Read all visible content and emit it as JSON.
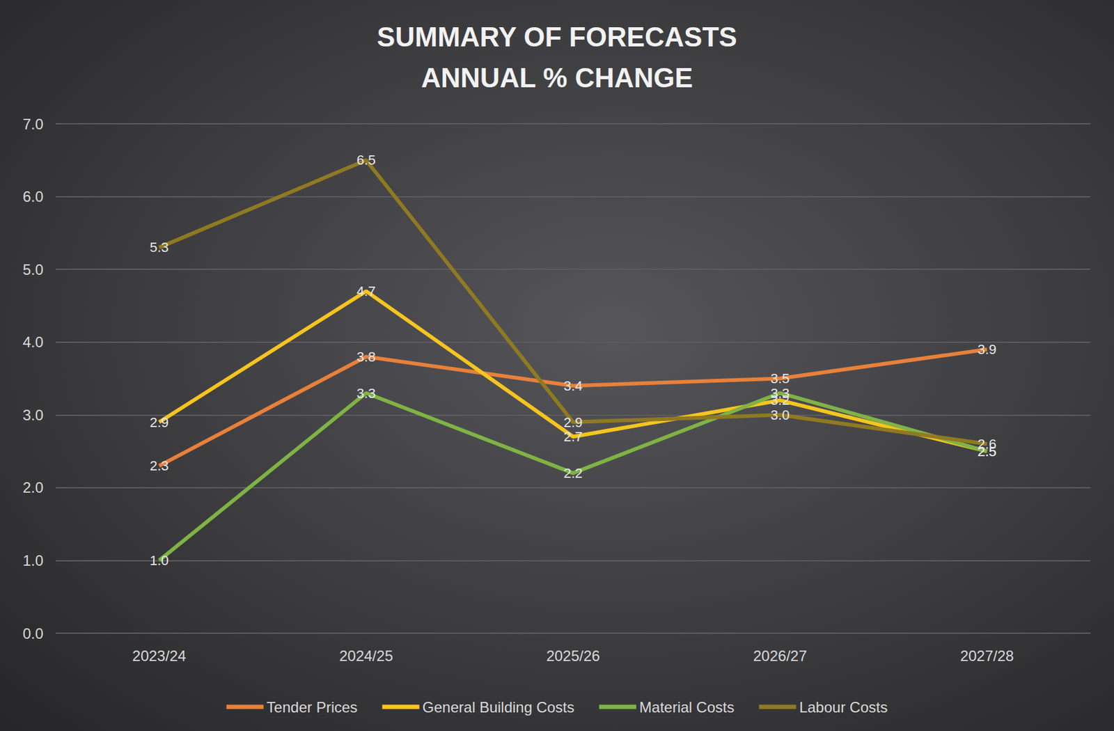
{
  "chart_data": {
    "type": "line",
    "title": "SUMMARY OF FORECASTS",
    "subtitle": "ANNUAL % CHANGE",
    "categories": [
      "2023/24",
      "2024/25",
      "2025/26",
      "2026/27",
      "2027/28"
    ],
    "series": [
      {
        "name": "Tender Prices",
        "color": "#e8803a",
        "values": [
          2.3,
          3.8,
          3.4,
          3.5,
          3.9
        ],
        "value_labels": [
          "2.3",
          "3.8",
          "3.4",
          "3.5",
          "3.9"
        ]
      },
      {
        "name": "General Building Costs",
        "color": "#f5c51e",
        "values": [
          2.9,
          4.7,
          2.7,
          3.2,
          2.5
        ],
        "value_labels": [
          "2.9",
          "4.7",
          "2.7",
          "3.2",
          "2.5"
        ]
      },
      {
        "name": "Material Costs",
        "color": "#7fb344",
        "values": [
          1.0,
          3.3,
          2.2,
          3.3,
          2.5
        ],
        "value_labels": [
          "1.0",
          "3.3",
          "2.2",
          "3.3",
          "2.5"
        ]
      },
      {
        "name": "Labour Costs",
        "color": "#8f7a22",
        "values": [
          5.3,
          6.5,
          2.9,
          3.0,
          2.6
        ],
        "value_labels": [
          "5.3",
          "6.5",
          "2.9",
          "3.0",
          "2.6"
        ]
      }
    ],
    "ylim": [
      0,
      7
    ],
    "yticks": [
      {
        "value": 0,
        "label": "0.0"
      },
      {
        "value": 1,
        "label": "1.0"
      },
      {
        "value": 2,
        "label": "2.0"
      },
      {
        "value": 3,
        "label": "3.0"
      },
      {
        "value": 4,
        "label": "4.0"
      },
      {
        "value": 5,
        "label": "5.0"
      },
      {
        "value": 6,
        "label": "6.0"
      },
      {
        "value": 7,
        "label": "7.0"
      }
    ],
    "grid": true,
    "legend": "bottom",
    "data_labels": true
  }
}
